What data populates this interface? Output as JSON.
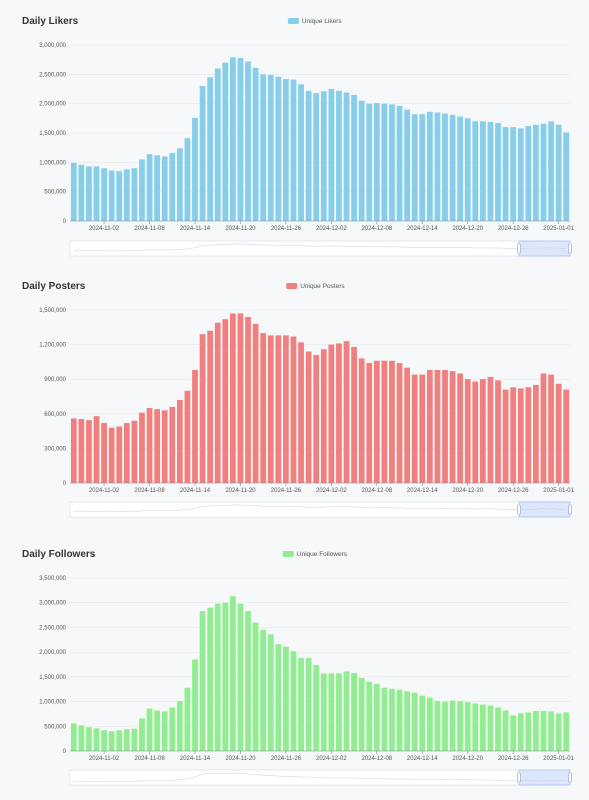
{
  "x_ticks": [
    "2024-11-02",
    "2024-11-08",
    "2024-11-14",
    "2024-11-20",
    "2024-11-26",
    "2024-12-02",
    "2024-12-08",
    "2024-12-14",
    "2024-12-20",
    "2024-12-26",
    "2025-01-01"
  ],
  "chart_data": [
    {
      "type": "bar",
      "title": "Daily Likers",
      "x_start": "2024-10-29",
      "x_end": "2025-01-02",
      "series": [
        {
          "name": "Unique Likers",
          "color": "#87ceeb",
          "values": [
            990000,
            960000,
            930000,
            930000,
            900000,
            860000,
            850000,
            880000,
            900000,
            1050000,
            1140000,
            1120000,
            1100000,
            1160000,
            1240000,
            1410000,
            1760000,
            2300000,
            2450000,
            2600000,
            2700000,
            2790000,
            2780000,
            2720000,
            2610000,
            2500000,
            2490000,
            2460000,
            2420000,
            2410000,
            2330000,
            2220000,
            2180000,
            2210000,
            2250000,
            2220000,
            2190000,
            2150000,
            2050000,
            2000000,
            2010000,
            2000000,
            1990000,
            1960000,
            1900000,
            1820000,
            1820000,
            1860000,
            1850000,
            1830000,
            1810000,
            1780000,
            1750000,
            1700000,
            1700000,
            1690000,
            1670000,
            1600000,
            1600000,
            1580000,
            1620000,
            1640000,
            1660000,
            1700000,
            1640000,
            1510000
          ]
        }
      ],
      "y_ticks": [
        "0",
        "500,000",
        "1,000,000",
        "1,500,000",
        "2,000,000",
        "2,500,000",
        "3,000,000"
      ],
      "ylim": [
        0,
        3000000
      ]
    },
    {
      "type": "bar",
      "title": "Daily Posters",
      "x_start": "2024-10-29",
      "x_end": "2025-01-02",
      "series": [
        {
          "name": "Unique Posters",
          "color": "#f08080",
          "values": [
            560000,
            555000,
            545000,
            580000,
            520000,
            480000,
            490000,
            520000,
            540000,
            610000,
            650000,
            640000,
            630000,
            660000,
            720000,
            800000,
            980000,
            1290000,
            1320000,
            1390000,
            1420000,
            1470000,
            1470000,
            1440000,
            1380000,
            1300000,
            1280000,
            1280000,
            1280000,
            1270000,
            1220000,
            1140000,
            1110000,
            1160000,
            1200000,
            1210000,
            1230000,
            1180000,
            1080000,
            1040000,
            1060000,
            1060000,
            1060000,
            1040000,
            1000000,
            940000,
            940000,
            980000,
            980000,
            980000,
            970000,
            950000,
            900000,
            880000,
            900000,
            920000,
            890000,
            810000,
            830000,
            820000,
            830000,
            850000,
            950000,
            940000,
            860000,
            810000
          ]
        }
      ],
      "y_ticks": [
        "0",
        "300,000",
        "600,000",
        "900,000",
        "1,200,000",
        "1,500,000"
      ],
      "ylim": [
        0,
        1500000
      ]
    },
    {
      "type": "bar",
      "title": "Daily Followers",
      "x_start": "2024-10-29",
      "x_end": "2025-01-02",
      "series": [
        {
          "name": "Unique Followers",
          "color": "#90ee90",
          "values": [
            560000,
            520000,
            480000,
            460000,
            420000,
            400000,
            420000,
            440000,
            450000,
            660000,
            860000,
            820000,
            800000,
            880000,
            1010000,
            1280000,
            1850000,
            2830000,
            2900000,
            2980000,
            3000000,
            3130000,
            2980000,
            2830000,
            2600000,
            2450000,
            2360000,
            2160000,
            2110000,
            2020000,
            1880000,
            1880000,
            1740000,
            1570000,
            1570000,
            1570000,
            1610000,
            1580000,
            1480000,
            1400000,
            1360000,
            1280000,
            1260000,
            1240000,
            1210000,
            1180000,
            1120000,
            1080000,
            1010000,
            1000000,
            1020000,
            1010000,
            990000,
            960000,
            940000,
            920000,
            880000,
            820000,
            720000,
            760000,
            780000,
            810000,
            810000,
            800000,
            760000,
            780000
          ]
        }
      ],
      "y_ticks": [
        "0",
        "500,000",
        "1,000,000",
        "1,500,000",
        "2,000,000",
        "2,500,000",
        "3,000,000",
        "3,500,000"
      ],
      "ylim": [
        0,
        3500000
      ]
    }
  ]
}
